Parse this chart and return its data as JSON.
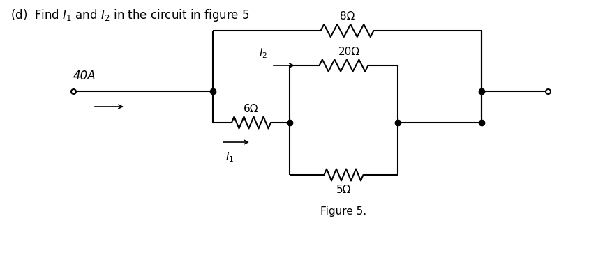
{
  "title": "(d)  Find $I_1$ and $I_2$ in the circuit in figure 5",
  "figure_label": "Figure 5.",
  "bg_color": "#ffffff",
  "line_color": "#000000",
  "line_width": 1.5,
  "resistor_label_8": "8Ω",
  "resistor_label_20": "20Ω",
  "resistor_label_6": "6Ω",
  "resistor_label_5": "5Ω",
  "source_label": "40A",
  "current_label_1": "$I_1$",
  "current_label_2": "$I_2$"
}
